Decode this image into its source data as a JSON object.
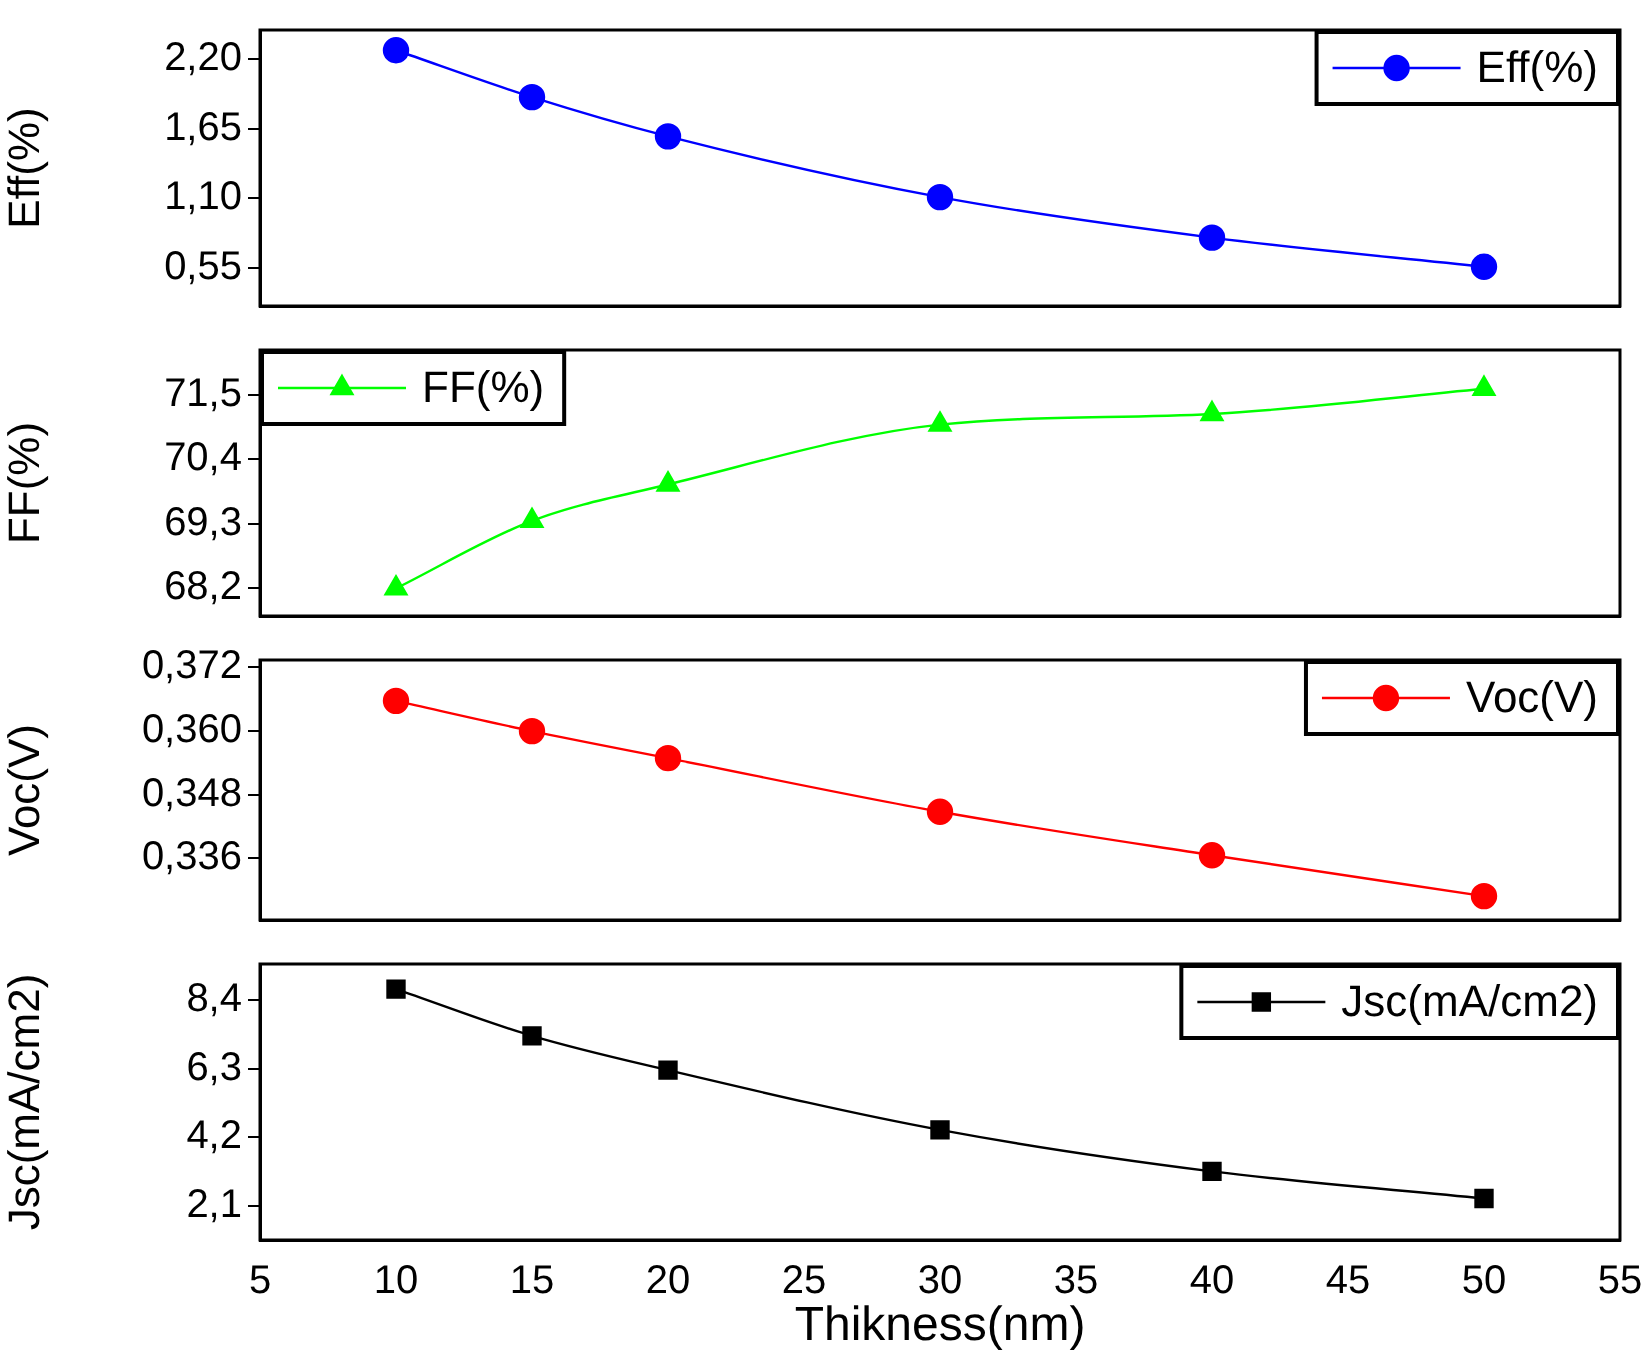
{
  "chart_data": [
    {
      "type": "line",
      "x": [
        10,
        15,
        20,
        30,
        40,
        50
      ],
      "series": [
        {
          "name": "Eff(%)",
          "color": "#0000ff",
          "values": [
            2.27,
            1.9,
            1.59,
            1.11,
            0.79,
            0.56
          ]
        }
      ],
      "xlim": [
        5,
        55
      ],
      "xticks": [
        5,
        10,
        15,
        20,
        25,
        30,
        35,
        40,
        45,
        50,
        55
      ],
      "ylim": [
        0.25,
        2.43
      ],
      "yticks": [
        {
          "value": 0.55,
          "label": "0,55"
        },
        {
          "value": 1.1,
          "label": "1,10"
        },
        {
          "value": 1.65,
          "label": "1,65"
        },
        {
          "value": 2.2,
          "label": "2,20"
        }
      ],
      "ylabel": "Eff(%)",
      "legend": "top right",
      "marker": "circle",
      "tick_labels": "y"
    },
    {
      "type": "line",
      "x": [
        10,
        15,
        20,
        30,
        40,
        50
      ],
      "series": [
        {
          "name": "FF(%)",
          "color": "#00ff00",
          "values": [
            68.2,
            69.35,
            69.97,
            70.99,
            71.17,
            71.6
          ]
        }
      ],
      "xlim": [
        5,
        55
      ],
      "xticks": [
        5,
        10,
        15,
        20,
        25,
        30,
        35,
        40,
        45,
        50,
        55
      ],
      "ylim": [
        67.73,
        72.26
      ],
      "yticks": [
        {
          "value": 68.2,
          "label": "68,2"
        },
        {
          "value": 69.3,
          "label": "69,3"
        },
        {
          "value": 70.4,
          "label": "70,4"
        },
        {
          "value": 71.5,
          "label": "71,5"
        }
      ],
      "ylabel": "FF(%)",
      "legend": "top left",
      "marker": "triangle",
      "tick_labels": "y"
    },
    {
      "type": "line",
      "x": [
        10,
        15,
        20,
        30,
        40,
        50
      ],
      "series": [
        {
          "name": "Voc(V)",
          "color": "#ff0000",
          "values": [
            0.3657,
            0.36,
            0.3549,
            0.3448,
            0.3366,
            0.3289
          ]
        }
      ],
      "xlim": [
        5,
        55
      ],
      "xticks": [
        5,
        10,
        15,
        20,
        25,
        30,
        35,
        40,
        45,
        50,
        55
      ],
      "ylim": [
        0.3244,
        0.3734
      ],
      "yticks": [
        {
          "value": 0.336,
          "label": "0,336"
        },
        {
          "value": 0.348,
          "label": "0,348"
        },
        {
          "value": 0.36,
          "label": "0,360"
        },
        {
          "value": 0.372,
          "label": "0,372"
        }
      ],
      "ylabel": "Voc(V)",
      "legend": "top right",
      "marker": "circle",
      "tick_labels": "y"
    },
    {
      "type": "line",
      "x": [
        10,
        15,
        20,
        30,
        40,
        50
      ],
      "series": [
        {
          "name": "Jsc(mA/cm2)",
          "color": "#000000",
          "values": [
            8.73,
            7.3,
            6.25,
            4.42,
            3.15,
            2.32
          ]
        }
      ],
      "xlim": [
        5,
        55
      ],
      "xticks": [
        5,
        10,
        15,
        20,
        25,
        30,
        35,
        40,
        45,
        50,
        55
      ],
      "ylim": [
        1.05,
        9.5
      ],
      "yticks": [
        {
          "value": 2.1,
          "label": "2,1"
        },
        {
          "value": 4.2,
          "label": "4,2"
        },
        {
          "value": 6.3,
          "label": "6,3"
        },
        {
          "value": 8.4,
          "label": "8,4"
        }
      ],
      "ylabel": "Jsc(mA/cm2)",
      "xlabel": "Thikness(nm)",
      "legend": "top right",
      "marker": "square"
    }
  ]
}
